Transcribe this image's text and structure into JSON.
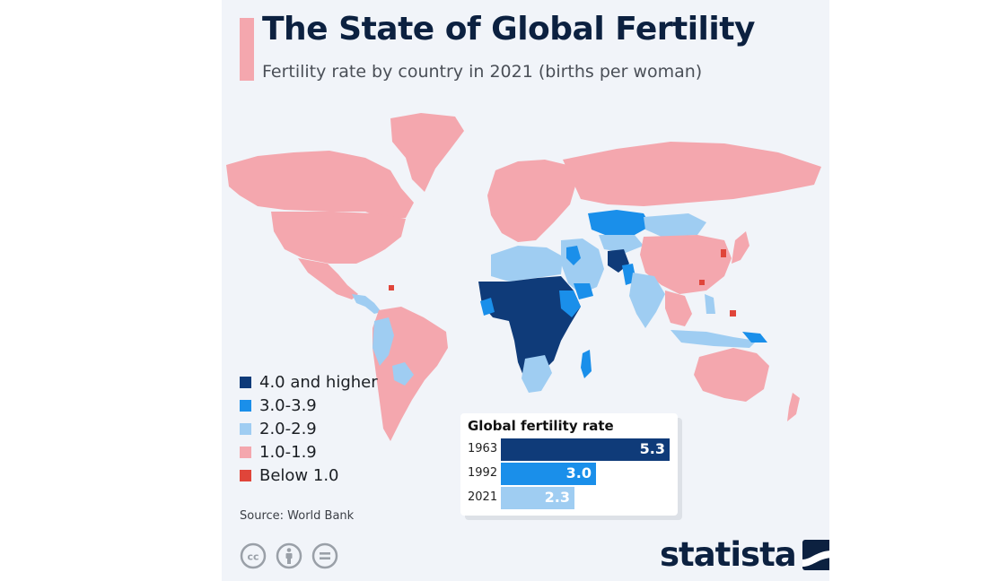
{
  "header": {
    "title": "The State of Global Fertility",
    "subtitle": "Fertility rate by country in 2021 (births per woman)"
  },
  "colors": {
    "accent": "#f4a7ae",
    "tier_4_plus": "#0f3b79",
    "tier_3": "#1a8fea",
    "tier_2": "#9fcdf2",
    "tier_1": "#f4a7ae",
    "tier_below_1": "#e0453a",
    "brand": "#0c2140"
  },
  "legend": {
    "items": [
      {
        "label": "4.0 and higher",
        "color": "#0f3b79"
      },
      {
        "label": "3.0-3.9",
        "color": "#1a8fea"
      },
      {
        "label": "2.0-2.9",
        "color": "#9fcdf2"
      },
      {
        "label": "1.0-1.9",
        "color": "#f4a7ae"
      },
      {
        "label": "Below 1.0",
        "color": "#e0453a"
      }
    ]
  },
  "chart_data": [
    {
      "type": "choropleth",
      "title": "Fertility rate by country in 2021 (births per woman)",
      "classes": [
        "4.0 and higher",
        "3.0-3.9",
        "2.0-2.9",
        "1.0-1.9",
        "Below 1.0"
      ]
    },
    {
      "type": "bar",
      "orientation": "horizontal",
      "title": "Global fertility rate",
      "categories": [
        "1963",
        "1992",
        "2021"
      ],
      "values": [
        5.3,
        3.0,
        2.3
      ],
      "value_labels": [
        "5.3",
        "3.0",
        "2.3"
      ],
      "colors": [
        "#0f3b79",
        "#1a8fea",
        "#9fcdf2"
      ],
      "xlim": [
        0,
        5.3
      ]
    }
  ],
  "footer": {
    "source": "Source: World Bank",
    "brand": "statista",
    "license_icons": [
      "creative-commons-icon",
      "attribution-icon",
      "no-derivatives-icon"
    ]
  }
}
